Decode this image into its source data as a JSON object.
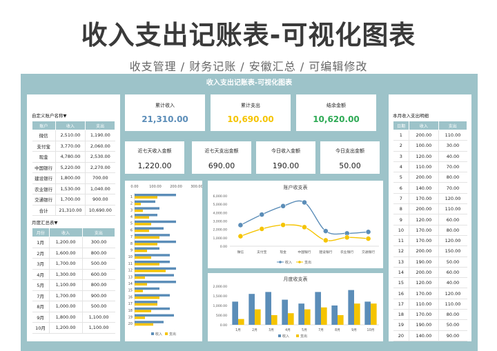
{
  "hero": {
    "title": "收入支出记账表-可视化图表",
    "subtitle": "收支管理 /  财务记账 /  安徽汇总 /  可编辑修改"
  },
  "sheet": {
    "title": "收入支出记账表-可视化图表"
  },
  "account_table": {
    "label": "自定义账户名称▼",
    "headers": [
      "账户",
      "收入",
      "支出"
    ],
    "rows": [
      [
        "微信",
        "2,510.00",
        "1,190.00"
      ],
      [
        "支付宝",
        "3,770.00",
        "2,060.00"
      ],
      [
        "现金",
        "4,780.00",
        "2,530.00"
      ],
      [
        "中国银行",
        "5,220.00",
        "2,270.00"
      ],
      [
        "建设银行",
        "1,800.00",
        "700.00"
      ],
      [
        "农业银行",
        "1,530.00",
        "1,040.00"
      ],
      [
        "交通银行",
        "1,700.00",
        "900.00"
      ],
      [
        "合计",
        "21,310.00",
        "10,690.00"
      ]
    ]
  },
  "month_table": {
    "label": "月度汇总表▼",
    "headers": [
      "月份",
      "收入",
      "支出"
    ],
    "rows": [
      [
        "1月",
        "1,200.00",
        "300.00"
      ],
      [
        "2月",
        "1,600.00",
        "800.00"
      ],
      [
        "3月",
        "1,700.00",
        "500.00"
      ],
      [
        "4月",
        "1,300.00",
        "600.00"
      ],
      [
        "5月",
        "1,100.00",
        "800.00"
      ],
      [
        "7月",
        "1,700.00",
        "900.00"
      ],
      [
        "8月",
        "1,000.00",
        "500.00"
      ],
      [
        "9月",
        "1,800.00",
        "1,100.00"
      ],
      [
        "10月",
        "1,200.00",
        "1,100.00"
      ]
    ]
  },
  "kpis": [
    {
      "title": "累计收入",
      "value": "21,310.00",
      "color": "#5b8db8"
    },
    {
      "title": "累计支出",
      "value": "10,690.00",
      "color": "#f5c400"
    },
    {
      "title": "结余金额",
      "value": "10,620.00",
      "color": "#2eaa55"
    }
  ],
  "kpis2": [
    {
      "title": "近七天收入金额",
      "value": "1,220.00"
    },
    {
      "title": "近七天支出金额",
      "value": "690.00"
    },
    {
      "title": "今日收入金额",
      "value": "190.00"
    },
    {
      "title": "今日支出金额",
      "value": "50.00"
    }
  ],
  "daily_table": {
    "label": "本月收入支出明细",
    "headers": [
      "日期",
      "收入",
      "支出"
    ],
    "rows": [
      [
        "1",
        "200.00",
        "110.00"
      ],
      [
        "2",
        "100.00",
        "30.00"
      ],
      [
        "3",
        "120.00",
        "40.00"
      ],
      [
        "4",
        "110.00",
        "70.00"
      ],
      [
        "5",
        "200.00",
        "80.00"
      ],
      [
        "6",
        "140.00",
        "70.00"
      ],
      [
        "7",
        "170.00",
        "120.00"
      ],
      [
        "8",
        "200.00",
        "110.00"
      ],
      [
        "9",
        "120.00",
        "60.00"
      ],
      [
        "10",
        "170.00",
        "80.00"
      ],
      [
        "11",
        "170.00",
        "120.00"
      ],
      [
        "12",
        "200.00",
        "150.00"
      ],
      [
        "13",
        "190.00",
        "50.00"
      ],
      [
        "14",
        "200.00",
        "60.00"
      ],
      [
        "15",
        "120.00",
        "40.00"
      ],
      [
        "16",
        "170.00",
        "120.00"
      ],
      [
        "17",
        "110.00",
        "110.00"
      ],
      [
        "18",
        "170.00",
        "80.00"
      ],
      [
        "19",
        "190.00",
        "50.00"
      ],
      [
        "20",
        "140.00",
        "90.00"
      ]
    ]
  },
  "colors": {
    "income": "#5b8db8",
    "expense": "#f5c400",
    "header": "#9dc3c9"
  },
  "chart_data": [
    {
      "type": "bar",
      "orientation": "horizontal",
      "title": "",
      "categories": [
        "1",
        "2",
        "3",
        "4",
        "5",
        "6",
        "7",
        "8",
        "9",
        "10",
        "11",
        "12",
        "13",
        "14",
        "15",
        "16",
        "17",
        "18",
        "19",
        "20"
      ],
      "series": [
        {
          "name": "收入",
          "values": [
            200,
            100,
            120,
            110,
            200,
            140,
            170,
            200,
            120,
            170,
            170,
            200,
            190,
            200,
            120,
            170,
            110,
            170,
            190,
            140
          ]
        },
        {
          "name": "支出",
          "values": [
            110,
            30,
            40,
            70,
            80,
            70,
            120,
            110,
            60,
            80,
            120,
            150,
            50,
            60,
            40,
            120,
            110,
            80,
            50,
            90
          ]
        }
      ],
      "xlim": [
        0,
        300
      ],
      "xticks": [
        "0.00",
        "100.00",
        "200.00",
        "300.00"
      ],
      "legend": "bottom"
    },
    {
      "type": "line",
      "title": "账户收支表",
      "categories": [
        "微信",
        "支付宝",
        "现金",
        "中国银行",
        "建设银行",
        "农业银行",
        "交通银行"
      ],
      "series": [
        {
          "name": "收入",
          "values": [
            2510,
            3770,
            4780,
            5220,
            1800,
            1530,
            1700
          ]
        },
        {
          "name": "支出",
          "values": [
            1190,
            2060,
            2530,
            2270,
            700,
            1040,
            900
          ]
        }
      ],
      "ylim": [
        0,
        6000
      ],
      "yticks": [
        "0.00",
        "1,000.00",
        "2,000.00",
        "3,000.00",
        "4,000.00",
        "5,000.00",
        "6,000.00"
      ],
      "legend": "bottom"
    },
    {
      "type": "bar",
      "title": "月度收支表",
      "categories": [
        "1月",
        "2月",
        "3月",
        "4月",
        "5月",
        "7月",
        "8月",
        "9月",
        "10月"
      ],
      "series": [
        {
          "name": "收入",
          "values": [
            1200,
            1600,
            1700,
            1300,
            1100,
            1700,
            1000,
            1800,
            1200
          ]
        },
        {
          "name": "支出",
          "values": [
            300,
            800,
            500,
            600,
            800,
            900,
            500,
            1100,
            1100
          ]
        }
      ],
      "ylim": [
        0,
        2000
      ],
      "yticks": [
        "0.00",
        "500.00",
        "1,000.00",
        "1,500.00",
        "2,000.00"
      ],
      "legend": "bottom"
    }
  ]
}
